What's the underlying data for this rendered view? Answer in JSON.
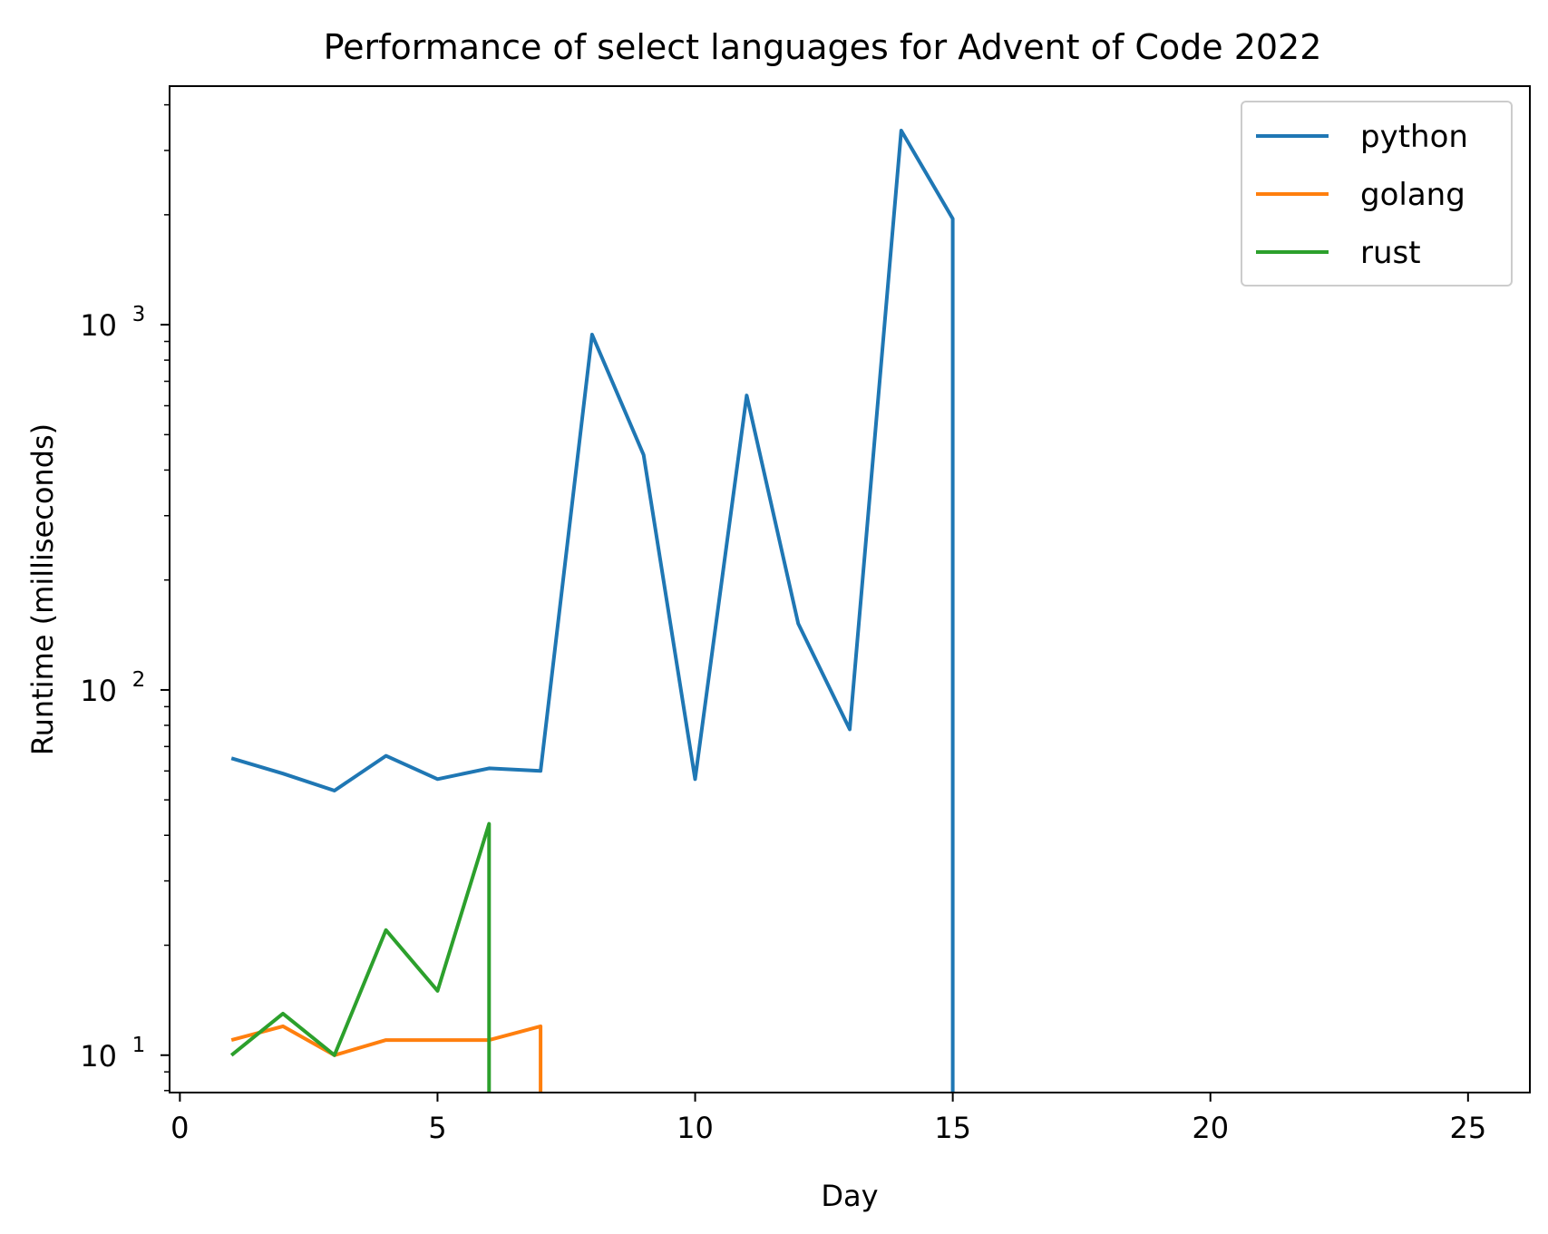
{
  "chart_data": {
    "type": "line",
    "title": "Performance of select languages for Advent of Code 2022",
    "xlabel": "Day",
    "ylabel": "Runtime (milliseconds)",
    "xlim": [
      -0.2,
      26.2
    ],
    "ylim": [
      7.9,
      4500
    ],
    "yscale": "log",
    "xticks": [
      0,
      5,
      10,
      15,
      20,
      25
    ],
    "yticks": [
      {
        "value": 10,
        "base": "10",
        "exp": "1"
      },
      {
        "value": 100,
        "base": "10",
        "exp": "2"
      },
      {
        "value": 1000,
        "base": "10",
        "exp": "3"
      }
    ],
    "grid": false,
    "legend_position": "top-right",
    "series": [
      {
        "name": "python",
        "color": "#1f77b4",
        "x": [
          1,
          2,
          3,
          4,
          5,
          6,
          7,
          8,
          9,
          10,
          11,
          12,
          13,
          14,
          15,
          15
        ],
        "y": [
          65,
          59,
          53,
          66,
          57,
          61,
          60,
          940,
          440,
          57,
          640,
          152,
          78,
          3400,
          1950,
          0
        ]
      },
      {
        "name": "golang",
        "color": "#ff7f0e",
        "x": [
          1,
          2,
          3,
          4,
          5,
          6,
          7,
          7
        ],
        "y": [
          11,
          12,
          10,
          11,
          11,
          11,
          12,
          0
        ]
      },
      {
        "name": "rust",
        "color": "#2ca02c",
        "x": [
          1,
          2,
          3,
          4,
          5,
          6,
          6
        ],
        "y": [
          10,
          13,
          10,
          22,
          15,
          43,
          0
        ]
      }
    ]
  }
}
